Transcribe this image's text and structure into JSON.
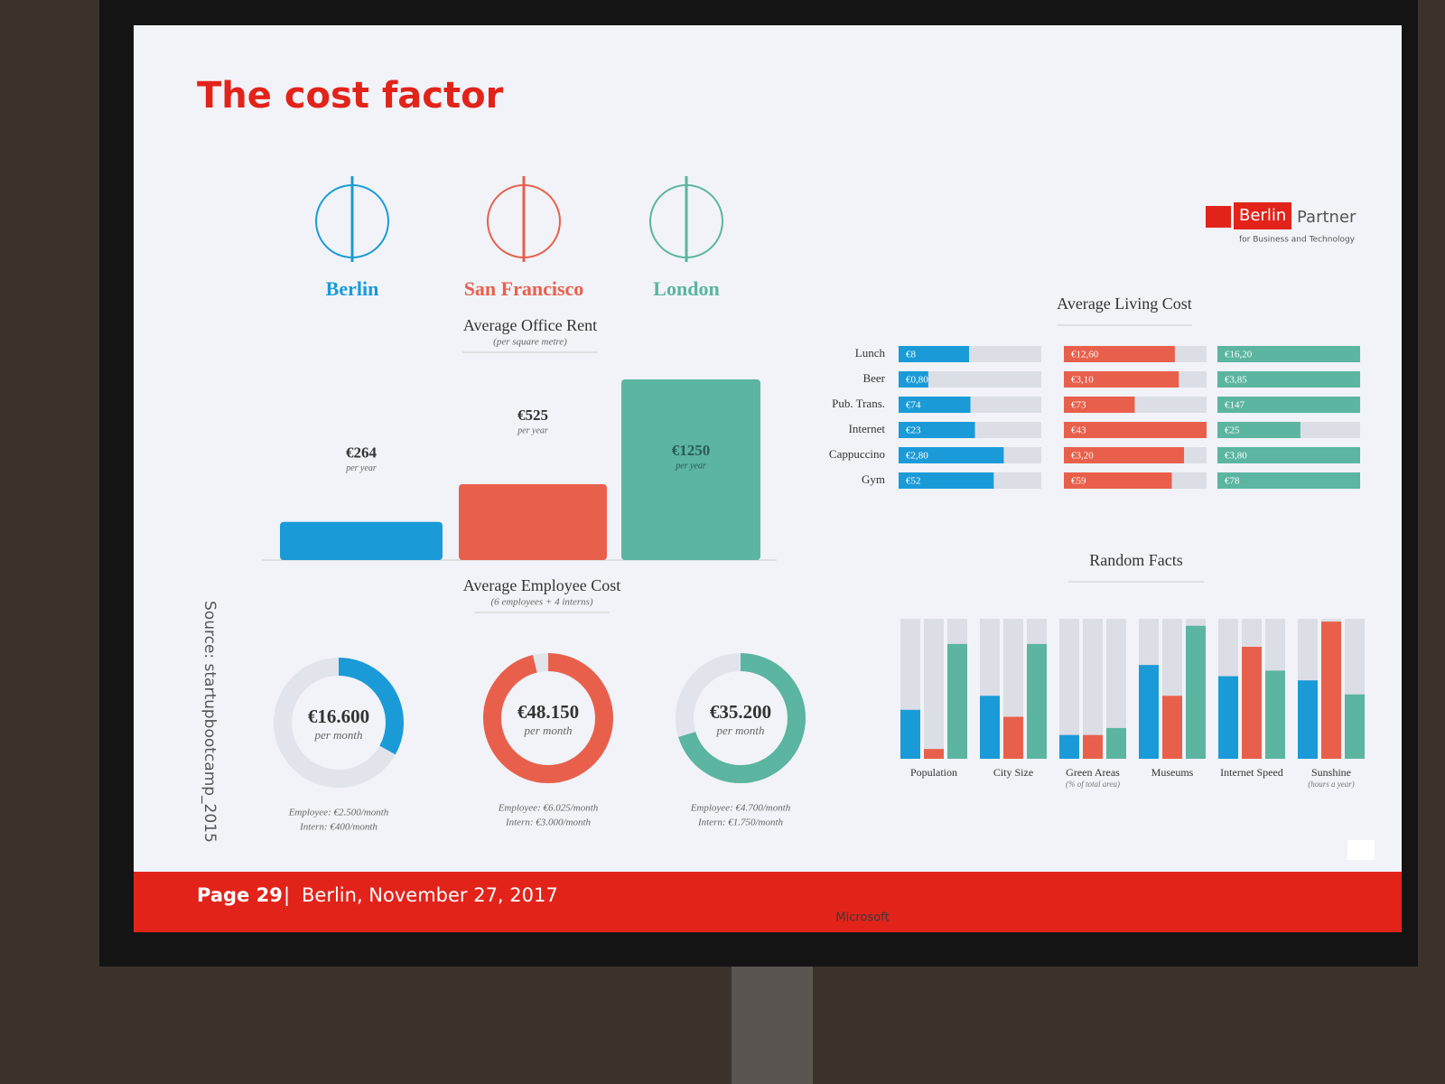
{
  "title": "The cost factor",
  "logo": {
    "name": "Berlin",
    "partner": "Partner",
    "tagline": "for Business and Technology"
  },
  "source": "Source: startupbootcamp_2015",
  "footer": {
    "page": "Page 29",
    "separator": "|",
    "date": "Berlin, November 27, 2017"
  },
  "bezel_brand": "Microsoft",
  "chart_data": [
    {
      "type": "bar",
      "title": "Average Office Rent",
      "subtitle": "(per square metre)",
      "categories": [
        "Berlin",
        "San Francisco",
        "London"
      ],
      "values": [
        264,
        525,
        1250
      ],
      "value_labels": [
        "€264",
        "€525",
        "€1250"
      ],
      "unit_labels": [
        "per year",
        "per year",
        "per year"
      ],
      "colors": [
        "#1a9bd7",
        "#e8604c",
        "#5bb5a0"
      ],
      "ylim": [
        0,
        1250
      ]
    },
    {
      "type": "donut",
      "title": "Average Employee Cost",
      "subtitle": "(6 employees + 4 interns)",
      "values": [
        16600,
        48150,
        35200
      ],
      "value_labels": [
        "€16.600",
        "€48.150",
        "€35.200"
      ],
      "unit_labels": [
        "per month",
        "per month",
        "per month"
      ],
      "details": [
        [
          "Employee: €2.500/month",
          "Intern: €400/month"
        ],
        [
          "Employee: €6.025/month",
          "Intern: €3.000/month"
        ],
        [
          "Employee: €4.700/month",
          "Intern: €1.750/month"
        ]
      ],
      "colors": [
        "#1a9bd7",
        "#e8604c",
        "#5bb5a0"
      ],
      "ylim": [
        0,
        50000
      ]
    },
    {
      "type": "hbar",
      "title": "Average Living Cost",
      "categories": [
        "Lunch",
        "Beer",
        "Pub. Trans.",
        "Internet",
        "Cappuccino",
        "Gym"
      ],
      "series": [
        {
          "color": "#1a9bd7",
          "values": [
            8,
            0.8,
            74,
            23,
            2.8,
            52
          ],
          "value_labels": [
            "€8",
            "€0,80",
            "€74",
            "€23",
            "€2,80",
            "€52"
          ]
        },
        {
          "color": "#e8604c",
          "values": [
            12.6,
            3.1,
            73,
            43,
            3.2,
            59
          ],
          "value_labels": [
            "€12,60",
            "€3,10",
            "€73",
            "€43",
            "€3,20",
            "€59"
          ]
        },
        {
          "color": "#5bb5a0",
          "values": [
            16.2,
            3.85,
            147,
            25,
            3.8,
            78
          ],
          "value_labels": [
            "€16,20",
            "€3,85",
            "€147",
            "€25",
            "€3,80",
            "€78"
          ]
        }
      ]
    },
    {
      "type": "grouped-bar",
      "title": "Random Facts",
      "categories": [
        "Population",
        "City Size",
        "Green Areas",
        "Museums",
        "Internet Speed",
        "Sunshine"
      ],
      "category_notes": [
        null,
        null,
        "(% of total area)",
        null,
        null,
        "(hours a year)"
      ],
      "series": [
        {
          "color": "#1a9bd7",
          "values": [
            35,
            45,
            17,
            67,
            59,
            56
          ]
        },
        {
          "color": "#e8604c",
          "values": [
            7,
            30,
            17,
            45,
            80,
            98
          ]
        },
        {
          "color": "#5bb5a0",
          "values": [
            82,
            82,
            22,
            95,
            63,
            46
          ]
        }
      ],
      "ylim": [
        0,
        100
      ]
    }
  ]
}
